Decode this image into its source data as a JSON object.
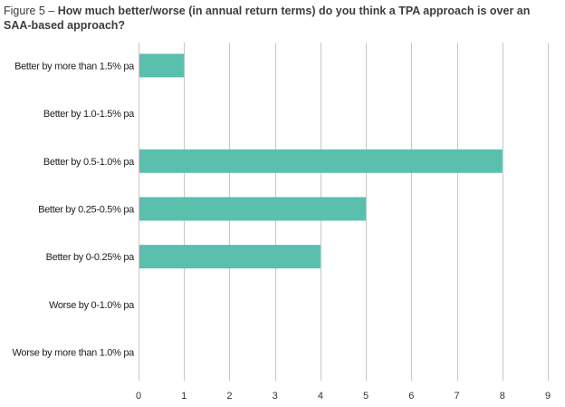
{
  "figure": {
    "label": "Figure 5 –",
    "question": "How much better/worse (in annual return terms) do you think a TPA approach is over an SAA-based approach?"
  },
  "chart_data": {
    "type": "bar",
    "orientation": "horizontal",
    "title": "Figure 5 – How much better/worse (in annual return terms) do you think a TPA approach is over an SAA-based approach?",
    "categories": [
      "Better by more than 1.5% pa",
      "Better by 1.0-1.5% pa",
      "Better by 0.5-1.0% pa",
      "Better by 0.25-0.5% pa",
      "Better by 0-0.25% pa",
      "Worse by 0-1.0% pa",
      "Worse by more than 1.0% pa"
    ],
    "values": [
      1,
      0,
      8,
      5,
      4,
      0,
      0
    ],
    "xlim": [
      0,
      9
    ],
    "xticks": [
      0,
      1,
      2,
      3,
      4,
      5,
      6,
      7,
      8,
      9
    ],
    "xlabel": "",
    "ylabel": "",
    "grid": "vertical",
    "legend": "none",
    "colors": {
      "bar": "#5bbfae",
      "grid": "#c8c8c8"
    }
  }
}
